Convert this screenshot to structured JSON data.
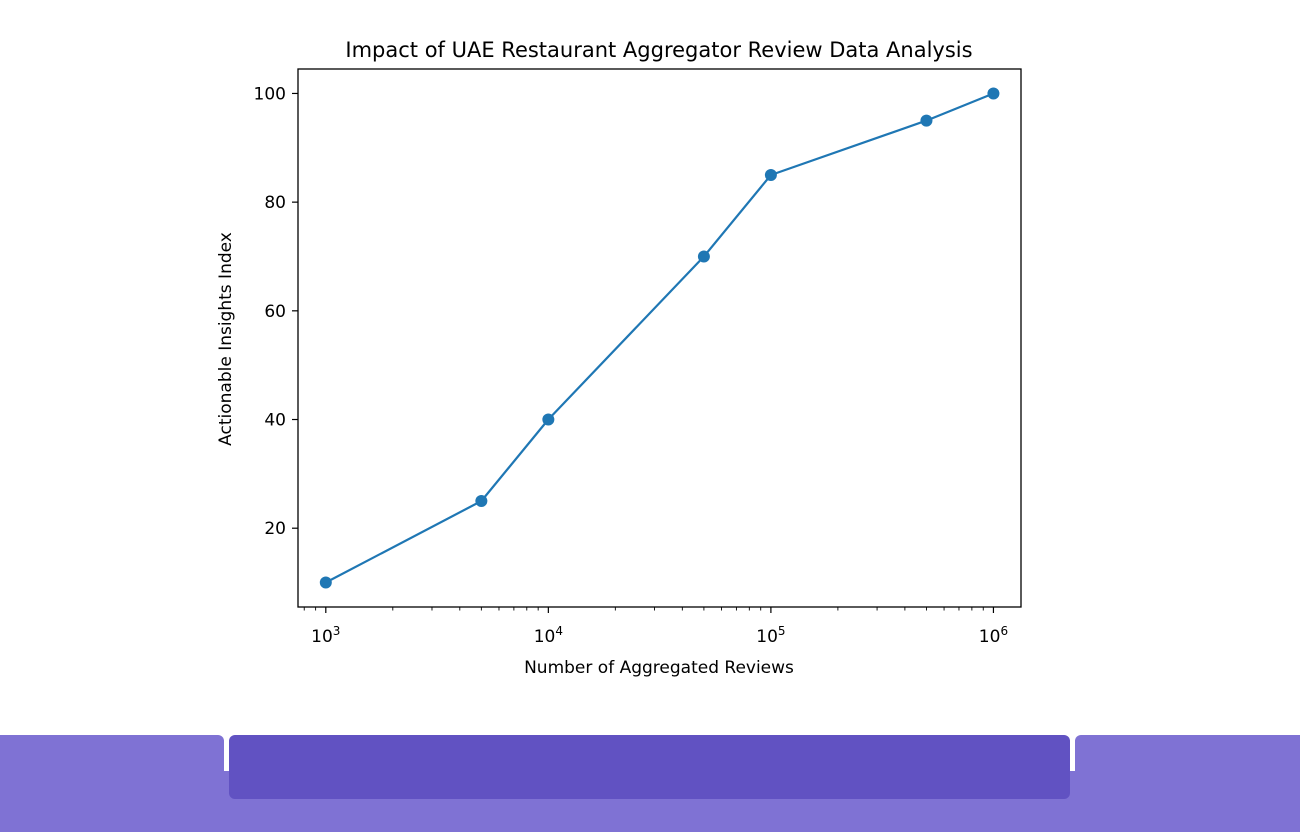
{
  "chart_data": {
    "type": "line",
    "title": "Impact of UAE Restaurant Aggregator Review Data Analysis",
    "xlabel": "Number of Aggregated Reviews",
    "ylabel": "Actionable Insights Index",
    "xscale": "log",
    "x": [
      1000,
      5000,
      10000,
      50000,
      100000,
      500000,
      1000000
    ],
    "series": [
      {
        "name": "Actionable Insights Index",
        "values": [
          10,
          25,
          40,
          70,
          85,
          95,
          100
        ],
        "color": "#1f77b4",
        "marker": "circle"
      }
    ],
    "xticks": [
      {
        "base": "10",
        "exp": "3",
        "value": 1000
      },
      {
        "base": "10",
        "exp": "4",
        "value": 10000
      },
      {
        "base": "10",
        "exp": "5",
        "value": 100000
      },
      {
        "base": "10",
        "exp": "6",
        "value": 1000000
      }
    ],
    "yticks": [
      20,
      40,
      60,
      80,
      100
    ],
    "xlim": [
      750,
      1330000
    ],
    "ylim": [
      5.5,
      104.5
    ],
    "grid": false,
    "legend": null
  },
  "footer": {
    "bar_color": "#7f72d4",
    "center_panel_color": "#6152c2"
  }
}
